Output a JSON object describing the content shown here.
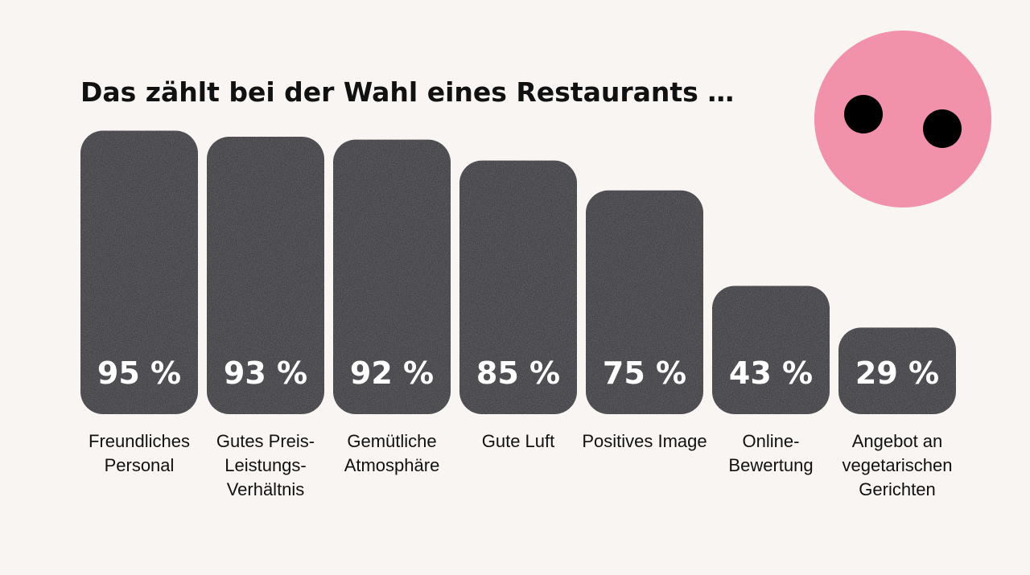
{
  "chart_data": {
    "type": "bar",
    "title": "Das zählt bei der Wahl eines Restaurants …",
    "categories": [
      "Freundliches Personal",
      "Gutes Preis-Leistungs-Verhältnis",
      "Gemütliche Atmosphäre",
      "Gute Luft",
      "Positives Image",
      "Online-Bewertung",
      "Angebot an vegetarischen Gerichten"
    ],
    "values": [
      95,
      93,
      92,
      85,
      75,
      43,
      29
    ],
    "value_labels": [
      "95 %",
      "93 %",
      "92 %",
      "85 %",
      "75 %",
      "43 %",
      "29 %"
    ],
    "color": "#2c2c31"
  }
}
